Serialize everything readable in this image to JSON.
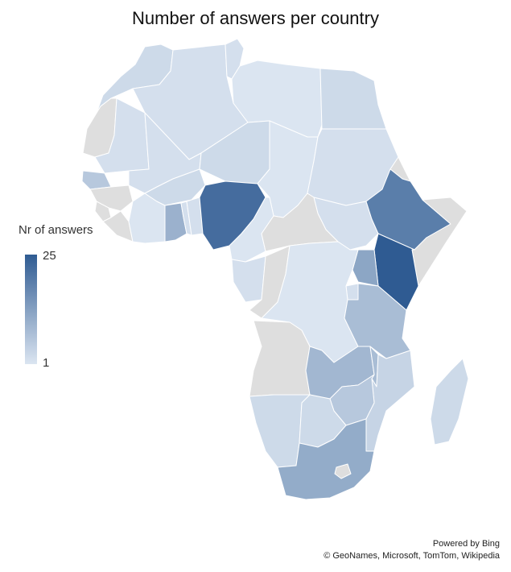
{
  "title": "Number of answers per country",
  "legend": {
    "title": "Nr of answers",
    "max_label": "25",
    "min_label": "1",
    "min_value": 1,
    "max_value": 25,
    "color_low": "#dbe5f1",
    "color_high": "#2f5b92",
    "no_data_color": "#dedede"
  },
  "attribution": {
    "line1": "Powered by Bing",
    "line2": "© GeoNames, Microsoft, TomTom, Wikipedia"
  },
  "map_data": {
    "region": "Africa",
    "countries": [
      {
        "name": "Morocco",
        "value": 3
      },
      {
        "name": "Western Sahara",
        "value": null
      },
      {
        "name": "Algeria",
        "value": 2
      },
      {
        "name": "Tunisia",
        "value": 2
      },
      {
        "name": "Libya",
        "value": 1
      },
      {
        "name": "Egypt",
        "value": 3
      },
      {
        "name": "Mauritania",
        "value": 2
      },
      {
        "name": "Mali",
        "value": 2
      },
      {
        "name": "Niger",
        "value": 3
      },
      {
        "name": "Chad",
        "value": 1
      },
      {
        "name": "Sudan",
        "value": 2
      },
      {
        "name": "South Sudan",
        "value": 2
      },
      {
        "name": "Senegal",
        "value": 6
      },
      {
        "name": "Guinea",
        "value": null
      },
      {
        "name": "Sierra Leone",
        "value": null
      },
      {
        "name": "Liberia",
        "value": null
      },
      {
        "name": "Cote d'Ivoire",
        "value": 1
      },
      {
        "name": "Burkina Faso",
        "value": 3
      },
      {
        "name": "Ghana",
        "value": 10
      },
      {
        "name": "Togo",
        "value": 2
      },
      {
        "name": "Benin",
        "value": 2
      },
      {
        "name": "Nigeria",
        "value": 22
      },
      {
        "name": "Cameroon",
        "value": 1
      },
      {
        "name": "Central African Republic",
        "value": null
      },
      {
        "name": "Eritrea",
        "value": null
      },
      {
        "name": "Ethiopia",
        "value": 19
      },
      {
        "name": "Somalia",
        "value": null
      },
      {
        "name": "Kenya",
        "value": 25
      },
      {
        "name": "Uganda",
        "value": 12
      },
      {
        "name": "Rwanda",
        "value": 2
      },
      {
        "name": "DR Congo",
        "value": 1
      },
      {
        "name": "Congo",
        "value": null
      },
      {
        "name": "Gabon",
        "value": 2
      },
      {
        "name": "Tanzania",
        "value": 8
      },
      {
        "name": "Angola",
        "value": null
      },
      {
        "name": "Zambia",
        "value": 9
      },
      {
        "name": "Malawi",
        "value": 8
      },
      {
        "name": "Mozambique",
        "value": 4
      },
      {
        "name": "Zimbabwe",
        "value": 6
      },
      {
        "name": "Namibia",
        "value": 3
      },
      {
        "name": "Botswana",
        "value": 3
      },
      {
        "name": "South Africa",
        "value": 11
      },
      {
        "name": "Lesotho",
        "value": null
      },
      {
        "name": "Madagascar",
        "value": 3
      }
    ]
  }
}
